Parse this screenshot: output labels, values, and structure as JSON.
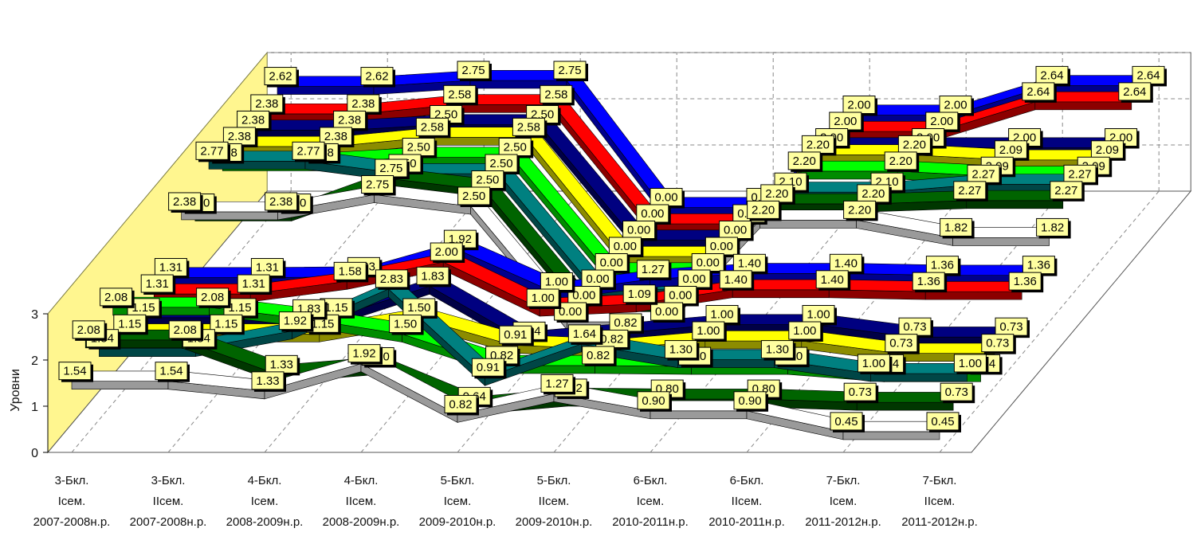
{
  "chart_data": {
    "type": "line",
    "style": "3d-ribbon",
    "ylabel": "Уровни",
    "ylim": [
      0,
      3
    ],
    "yticks": [
      "0",
      "1",
      "2",
      "3"
    ],
    "grid": true,
    "legend": "none",
    "categories": [
      [
        "3-Бкл.",
        "Iсем.",
        "2007-2008н.р."
      ],
      [
        "3-Бкл.",
        "IIсем.",
        "2007-2008н.р."
      ],
      [
        "4-Бкл.",
        "Iсем.",
        "2008-2009н.р."
      ],
      [
        "4-Бкл.",
        "IIсем.",
        "2008-2009н.р."
      ],
      [
        "5-Бкл.",
        "Iсем.",
        "2009-2010н.р."
      ],
      [
        "5-Бкл.",
        "IIсем.",
        "2009-2010н.р."
      ],
      [
        "6-Бкл.",
        "Iсем.",
        "2010-2011н.р."
      ],
      [
        "6-Бкл.",
        "IIсем.",
        "2010-2011н.р."
      ],
      [
        "7-Бкл.",
        "Iсем.",
        "2011-2012н.р."
      ],
      [
        "7-Бкл.",
        "IIсем.",
        "2011-2012н.р."
      ]
    ],
    "series": [
      {
        "color": "#ffffff",
        "values": [
          1.54,
          1.54,
          1.33,
          1.92,
          0.82,
          1.27,
          0.9,
          0.9,
          0.45,
          0.45
        ]
      },
      {
        "color": "#006400",
        "values": [
          2.08,
          2.08,
          1.33,
          1.5,
          0.64,
          0.82,
          0.8,
          0.8,
          0.73,
          0.73
        ]
      },
      {
        "color": "#008080",
        "values": [
          1.54,
          1.54,
          1.92,
          2.83,
          0.91,
          1.64,
          1.3,
          1.3,
          1.0,
          1.0
        ]
      },
      {
        "color": "#00ff00",
        "values": [
          2.08,
          2.08,
          1.83,
          1.5,
          0.82,
          0.82,
          0.8,
          0.8,
          0.64,
          0.64
        ]
      },
      {
        "color": "#ffff00",
        "values": [
          1.15,
          1.15,
          1.15,
          1.5,
          0.91,
          0.82,
          1.0,
          1.0,
          0.73,
          0.73
        ]
      },
      {
        "color": "#000080",
        "values": [
          1.15,
          1.15,
          1.15,
          1.83,
          0.64,
          0.82,
          1.0,
          1.0,
          0.73,
          0.73
        ]
      },
      {
        "color": "#ff0000",
        "values": [
          1.31,
          1.31,
          1.58,
          2.0,
          1.0,
          1.09,
          1.4,
          1.4,
          1.36,
          1.36
        ]
      },
      {
        "color": "#0000ff",
        "values": [
          1.31,
          1.31,
          1.33,
          1.92,
          1.0,
          1.27,
          1.4,
          1.4,
          1.36,
          1.36
        ]
      },
      {
        "color": "#ffffff",
        "values": [
          2.38,
          2.38,
          2.75,
          2.5,
          0.0,
          0.0,
          2.2,
          2.2,
          1.82,
          1.82
        ]
      },
      {
        "color": "#006400",
        "values": [
          2.0,
          2.0,
          2.75,
          2.5,
          0.0,
          0.0,
          2.2,
          2.2,
          2.27,
          2.27
        ]
      },
      {
        "color": "#008080",
        "values": [
          2.77,
          2.77,
          2.5,
          2.5,
          0.0,
          0.0,
          2.1,
          2.1,
          2.27,
          2.27
        ]
      },
      {
        "color": "#00ff00",
        "values": [
          2.38,
          2.38,
          2.5,
          2.5,
          0.0,
          0.0,
          2.2,
          2.2,
          2.09,
          2.09
        ]
      },
      {
        "color": "#ffff00",
        "values": [
          2.38,
          2.38,
          2.58,
          2.58,
          0.0,
          0.0,
          2.2,
          2.2,
          2.09,
          2.09
        ]
      },
      {
        "color": "#000080",
        "values": [
          2.38,
          2.38,
          2.5,
          2.5,
          0.0,
          0.0,
          2.0,
          2.0,
          2.0,
          2.0
        ]
      },
      {
        "color": "#ff0000",
        "values": [
          2.38,
          2.38,
          2.58,
          2.58,
          0.0,
          0.0,
          2.0,
          2.0,
          2.64,
          2.64
        ]
      },
      {
        "color": "#0000ff",
        "values": [
          2.62,
          2.62,
          2.75,
          2.75,
          0.0,
          0.0,
          2.0,
          2.0,
          2.64,
          2.64
        ]
      }
    ]
  }
}
